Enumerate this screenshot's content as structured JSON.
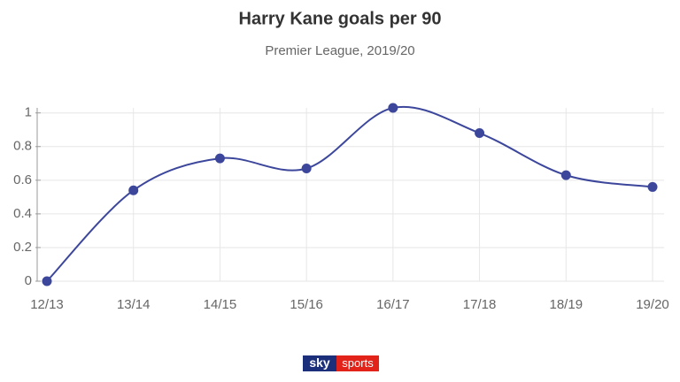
{
  "chart_data": {
    "type": "line",
    "title": "Harry Kane goals per 90",
    "subtitle": "Premier League, 2019/20",
    "categories": [
      "12/13",
      "13/14",
      "14/15",
      "15/16",
      "16/17",
      "17/18",
      "18/19",
      "19/20"
    ],
    "series": [
      {
        "name": "Goals per 90",
        "color": "#3c479c",
        "values": [
          0,
          0.54,
          0.73,
          0.67,
          1.03,
          0.88,
          0.63,
          0.56
        ]
      }
    ],
    "ylim": [
      0,
      1.03
    ],
    "yticks": [
      0,
      0.2,
      0.4,
      0.6,
      0.8,
      1
    ],
    "grid": true,
    "brand": [
      "sky",
      "sports"
    ]
  }
}
